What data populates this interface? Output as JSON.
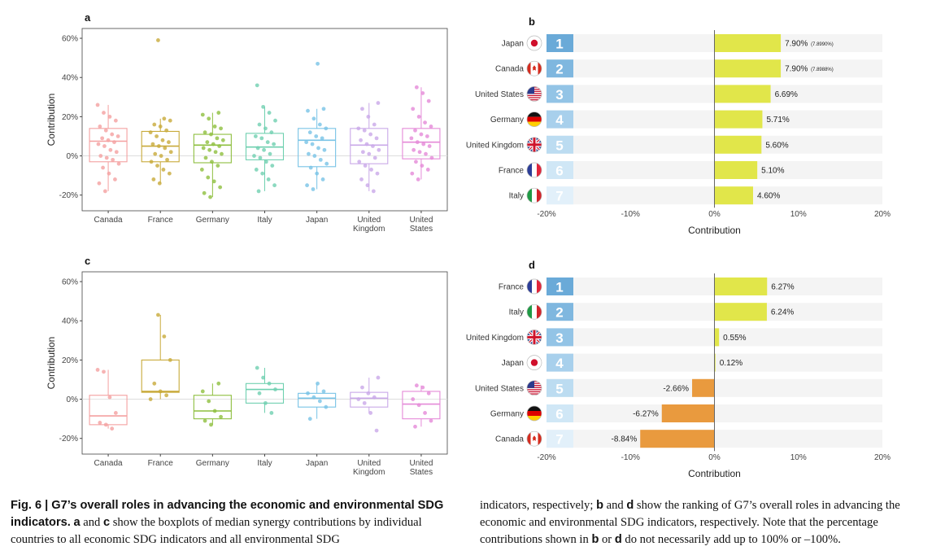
{
  "chart_data": [
    {
      "panel": "a",
      "type": "box",
      "ylabel": "Contribution",
      "ylim": [
        -28,
        65
      ],
      "yticks": [
        "-20%",
        "0%",
        "20%",
        "40%",
        "60%"
      ],
      "ytick_values": [
        -20,
        0,
        20,
        40,
        60
      ],
      "grid": "zero line only",
      "categories": [
        "Canada",
        "France",
        "Germany",
        "Italy",
        "Japan",
        "United Kingdom",
        "United States"
      ],
      "category_labels": [
        [
          "Canada"
        ],
        [
          "France"
        ],
        [
          "Germany"
        ],
        [
          "Italy"
        ],
        [
          "Japan"
        ],
        [
          "United",
          "Kingdom"
        ],
        [
          "United",
          "States"
        ]
      ],
      "colors": [
        "#f4a0a0",
        "#c8aa3a",
        "#8ebf3f",
        "#6fd0b0",
        "#78c3e6",
        "#c9a8e8",
        "#e58ad8"
      ],
      "boxes": [
        {
          "q1": -3,
          "median": 7.5,
          "q3": 14
        },
        {
          "q1": -3,
          "median": 5,
          "q3": 12.5
        },
        {
          "q1": -3.5,
          "median": 5.5,
          "q3": 11
        },
        {
          "q1": -2,
          "median": 4.5,
          "q3": 11.5
        },
        {
          "q1": -5.5,
          "median": 8,
          "q3": 14
        },
        {
          "q1": -4,
          "median": 5.5,
          "q3": 14
        },
        {
          "q1": -1.5,
          "median": 7,
          "q3": 14
        }
      ],
      "points": [
        [
          26,
          22,
          20,
          18,
          15,
          13,
          11,
          10,
          9,
          8,
          7,
          6,
          5,
          3,
          2,
          0,
          -1,
          -2,
          -4,
          -6,
          -9,
          -12,
          -14,
          -18
        ],
        [
          59,
          19,
          18,
          16,
          15,
          13,
          12,
          10,
          8,
          7,
          6,
          5,
          4,
          2,
          1,
          0,
          -2,
          -3,
          -5,
          -7,
          -9,
          -12,
          -14
        ],
        [
          22,
          21,
          19,
          15,
          14,
          12,
          11,
          9,
          8,
          7,
          6,
          5,
          4,
          3,
          2,
          1,
          -1,
          -3,
          -5,
          -7,
          -11,
          -13,
          -16,
          -19,
          -21
        ],
        [
          36,
          25,
          22,
          18,
          16,
          14,
          12,
          10,
          9,
          7,
          6,
          4,
          3,
          1,
          0,
          -1,
          -3,
          -5,
          -7,
          -9,
          -12,
          -15,
          -18
        ],
        [
          47,
          24,
          23,
          19,
          16,
          14,
          12,
          10,
          9,
          7,
          6,
          4,
          3,
          1,
          0,
          -2,
          -4,
          -6,
          -9,
          -12,
          -15,
          -17
        ],
        [
          27,
          24,
          20,
          16,
          14,
          13,
          11,
          9,
          8,
          6,
          5,
          3,
          2,
          1,
          -1,
          -3,
          -5,
          -7,
          -9,
          -12,
          -15,
          -18
        ],
        [
          35,
          32,
          28,
          24,
          20,
          17,
          15,
          13,
          11,
          10,
          9,
          7,
          6,
          5,
          3,
          2,
          1,
          -1,
          -3,
          -5,
          -7,
          -9,
          -12
        ]
      ]
    },
    {
      "panel": "b",
      "type": "bar",
      "orientation": "horizontal",
      "xlabel": "Contribution",
      "xlim": [
        -20,
        20
      ],
      "xticks": [
        "-20%",
        "-10%",
        "0%",
        "10%",
        "20%"
      ],
      "xtick_values": [
        -20,
        -10,
        0,
        10,
        20
      ],
      "countries": [
        "Japan",
        "Canada",
        "United States",
        "Germany",
        "United Kingdom",
        "France",
        "Italy"
      ],
      "ranks": [
        "1",
        "2",
        "3",
        "4",
        "5",
        "6",
        "7"
      ],
      "values": [
        7.9,
        7.9,
        6.69,
        5.71,
        5.6,
        5.1,
        4.6
      ],
      "value_labels": [
        "7.90%",
        "7.90%",
        "6.69%",
        "5.71%",
        "5.60%",
        "5.10%",
        "4.60%"
      ],
      "detail_labels": [
        "(7.8990%)",
        "(7.8988%)",
        "",
        "",
        "",
        "",
        ""
      ],
      "bar_color": "#e1e64a"
    },
    {
      "panel": "c",
      "type": "box",
      "ylabel": "Contribution",
      "ylim": [
        -28,
        65
      ],
      "yticks": [
        "-20%",
        "0%",
        "20%",
        "40%",
        "60%"
      ],
      "ytick_values": [
        -20,
        0,
        20,
        40,
        60
      ],
      "grid": "zero line only",
      "categories": [
        "Canada",
        "France",
        "Germany",
        "Italy",
        "Japan",
        "United Kingdom",
        "United States"
      ],
      "category_labels": [
        [
          "Canada"
        ],
        [
          "France"
        ],
        [
          "Germany"
        ],
        [
          "Italy"
        ],
        [
          "Japan"
        ],
        [
          "United",
          "Kingdom"
        ],
        [
          "United",
          "States"
        ]
      ],
      "colors": [
        "#f4a0a0",
        "#c8aa3a",
        "#8ebf3f",
        "#6fd0b0",
        "#78c3e6",
        "#c9a8e8",
        "#e58ad8"
      ],
      "boxes": [
        {
          "q1": -13,
          "median": -8.5,
          "q3": 2
        },
        {
          "q1": 3.5,
          "median": 4,
          "q3": 20
        },
        {
          "q1": -10,
          "median": -6,
          "q3": 2
        },
        {
          "q1": -2,
          "median": 5,
          "q3": 8
        },
        {
          "q1": -4,
          "median": 0.5,
          "q3": 3
        },
        {
          "q1": -4,
          "median": 0.5,
          "q3": 3.5
        },
        {
          "q1": -10,
          "median": -2.5,
          "q3": 4
        }
      ],
      "points": [
        [
          15,
          14,
          1,
          -7,
          -12,
          -13,
          -15
        ],
        [
          43,
          32,
          20,
          8,
          4,
          2,
          0
        ],
        [
          8,
          4,
          -1,
          -6,
          -9,
          -11,
          -13
        ],
        [
          16,
          11,
          8,
          5,
          3,
          -2,
          -7
        ],
        [
          8,
          4,
          3,
          1,
          -1,
          -4,
          -10
        ],
        [
          11,
          6,
          3,
          1,
          0,
          -2,
          -7,
          -16
        ],
        [
          7,
          6,
          3,
          0,
          -3,
          -7,
          -11,
          -14
        ]
      ]
    },
    {
      "panel": "d",
      "type": "bar",
      "orientation": "horizontal",
      "xlabel": "Contribution",
      "xlim": [
        -20,
        20
      ],
      "xticks": [
        "-20%",
        "-10%",
        "0%",
        "10%",
        "20%"
      ],
      "xtick_values": [
        -20,
        -10,
        0,
        10,
        20
      ],
      "countries": [
        "France",
        "Italy",
        "United Kingdom",
        "Japan",
        "United States",
        "Germany",
        "Canada"
      ],
      "ranks": [
        "1",
        "2",
        "3",
        "4",
        "5",
        "6",
        "7"
      ],
      "values": [
        6.27,
        6.24,
        0.55,
        0.12,
        -2.66,
        -6.27,
        -8.84
      ],
      "value_labels": [
        "6.27%",
        "6.24%",
        "0.55%",
        "0.12%",
        "-2.66%",
        "-6.27%",
        "-8.84%"
      ],
      "detail_labels": [
        "",
        "",
        "",
        "",
        "",
        "",
        ""
      ],
      "positive_color": "#e1e64a",
      "negative_color": "#e99a3e"
    }
  ],
  "colors": {
    "rank_shades": [
      "#6aaad8",
      "#7fb7df",
      "#93c4e6",
      "#a8d0ec",
      "#bcdcf1",
      "#d0e7f6",
      "#e2f0fa"
    ],
    "row_background": "#f4f4f4",
    "axis": "#555555",
    "zero_line": "#dddddd"
  },
  "flags": {
    "Japan": "flag-japan",
    "Canada": "flag-canada",
    "United States": "flag-united-states",
    "Germany": "flag-germany",
    "United Kingdom": "flag-united-kingdom",
    "France": "flag-france",
    "Italy": "flag-italy"
  },
  "caption": {
    "fig_label": "Fig. 6 | G7’s overall roles in advancing the economic and environmental SDG indicators.",
    "p1_bold": "a",
    "p1_t1": " and ",
    "p1_bold2": "c",
    "p1_t2": " show the boxplots of median synergy contributions by individual countries to all economic SDG indicators and all environmental SDG",
    "p2_t1": "indicators, respectively; ",
    "p2_bold1": "b",
    "p2_t2": " and ",
    "p2_bold2": "d",
    "p2_t3": " show the ranking of G7’s overall roles in advancing the economic and environmental SDG indicators, respectively. Note that the percentage contributions shown in ",
    "p2_bold3": "b",
    "p2_t4": " or ",
    "p2_bold4": "d",
    "p2_t5": " do not necessarily add up to 100% or –100%."
  }
}
